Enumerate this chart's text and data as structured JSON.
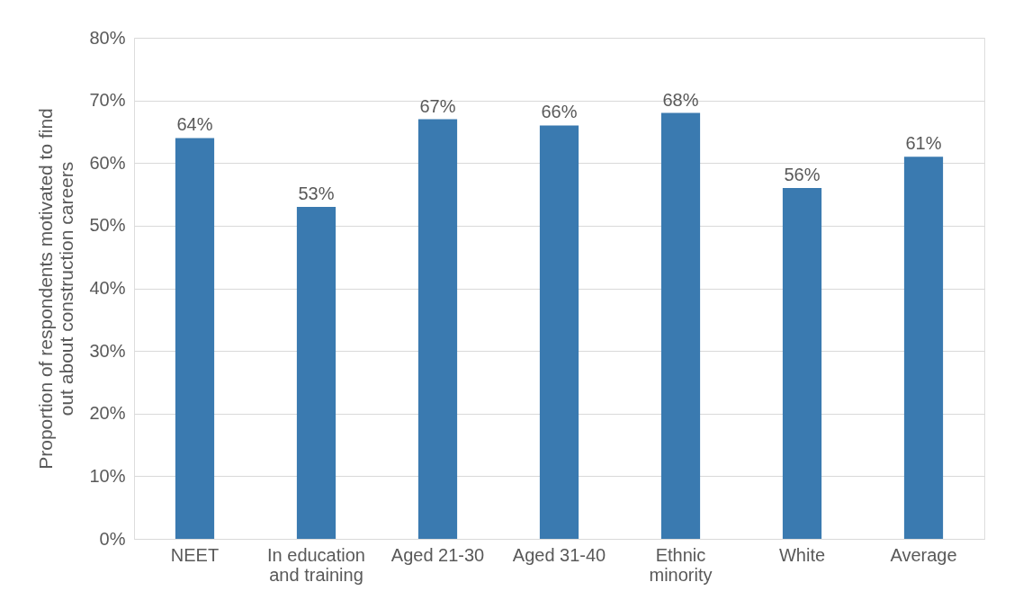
{
  "chart_data": {
    "type": "bar",
    "ylabel": "Proportion of respondents motivated to find\nout about construction careers",
    "categories": [
      "NEET",
      "In education\nand training",
      "Aged 21-30",
      "Aged 31-40",
      "Ethnic\nminority",
      "White",
      "Average"
    ],
    "values": [
      64,
      53,
      67,
      66,
      68,
      56,
      61
    ],
    "value_labels": [
      "64%",
      "53%",
      "67%",
      "66%",
      "68%",
      "56%",
      "61%"
    ],
    "color": "#3a7ab0",
    "ylim": [
      0,
      80
    ],
    "yticks": [
      {
        "value": 0,
        "label": "0%"
      },
      {
        "value": 10,
        "label": "10%"
      },
      {
        "value": 20,
        "label": "20%"
      },
      {
        "value": 30,
        "label": "30%"
      },
      {
        "value": 40,
        "label": "40%"
      },
      {
        "value": 50,
        "label": "50%"
      },
      {
        "value": 60,
        "label": "60%"
      },
      {
        "value": 70,
        "label": "70%"
      },
      {
        "value": 80,
        "label": "80%"
      }
    ],
    "grid": "y"
  }
}
